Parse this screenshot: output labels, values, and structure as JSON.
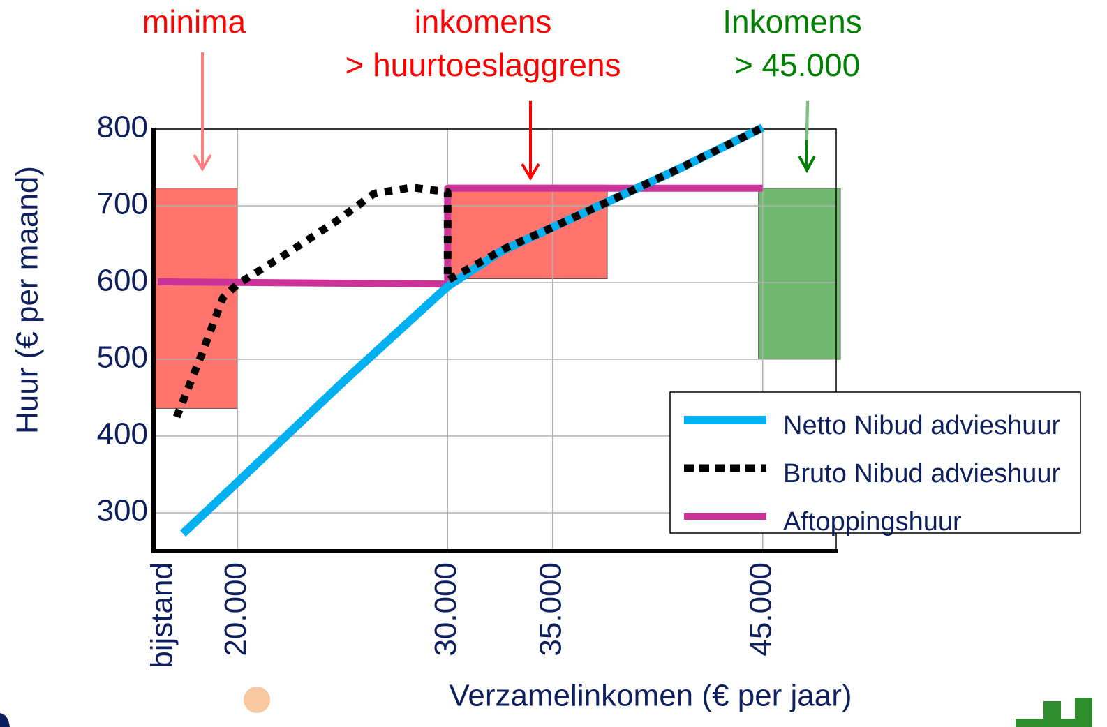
{
  "chart_data": {
    "type": "line",
    "xlabel": "Verzamelinkomen (€ per jaar)",
    "ylabel": "Huur (€ per maand)",
    "xlim": [
      16000,
      48500
    ],
    "ylim": [
      250,
      800
    ],
    "xticks": [
      {
        "value": 16500,
        "label": "bijstand"
      },
      {
        "value": 20000,
        "label": "20.000"
      },
      {
        "value": 30000,
        "label": "30.000"
      },
      {
        "value": 35000,
        "label": "35.000"
      },
      {
        "value": 45000,
        "label": "45.000"
      }
    ],
    "yticks": [
      300,
      400,
      500,
      600,
      700,
      800
    ],
    "grid": true,
    "legend": "lower right",
    "boxes": [
      {
        "x": [
          16000,
          20000
        ],
        "y": [
          436,
          723
        ],
        "color": "#ff756e"
      },
      {
        "x": [
          30000,
          37600
        ],
        "y": [
          605,
          727
        ],
        "color": "#ff756e"
      },
      {
        "x": [
          44800,
          48700
        ],
        "y": [
          500,
          723
        ],
        "color": "#70b870"
      }
    ],
    "series": [
      {
        "name": "Netto Nibud advieshuur",
        "color": "#00b0f0",
        "style": "solid",
        "x": [
          17400,
          20000,
          25000,
          30000,
          32500,
          35000,
          38000,
          41000,
          45000
        ],
        "values": [
          273,
          340,
          470,
          595,
          640,
          672,
          710,
          748,
          802
        ]
      },
      {
        "name": "Bruto Nibud advieshuur",
        "color": "#000000",
        "style": "dotted",
        "x": [
          17100,
          18300,
          19300,
          20000,
          22700,
          24700,
          26500,
          28300,
          30000,
          30000,
          32700,
          35000,
          38000,
          41000,
          45000
        ],
        "values": [
          425,
          507,
          580,
          598,
          644,
          680,
          716,
          724,
          718,
          603,
          644,
          672,
          710,
          748,
          802
        ]
      },
      {
        "name": "Aftoppingshuur",
        "color": "#cc3399",
        "style": "solid",
        "x": [
          16200,
          30000,
          30000,
          45000
        ],
        "values": [
          601,
          598,
          723,
          723
        ]
      }
    ],
    "annotations": [
      {
        "lines": [
          "minima"
        ],
        "color": "#ff0000"
      },
      {
        "lines": [
          "inkomens",
          "> huurtoeslaggrens"
        ],
        "color": "#ff0000"
      },
      {
        "lines": [
          "Inkomens",
          "> 45.000"
        ],
        "color": "#008000"
      }
    ]
  }
}
